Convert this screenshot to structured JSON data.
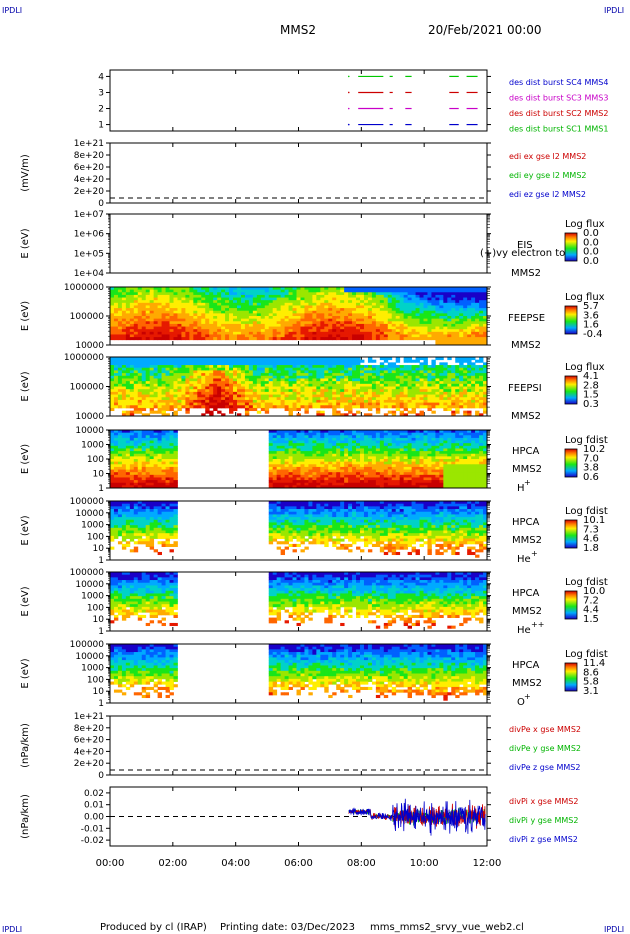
{
  "header": {
    "corner_tl": "IPDLI",
    "corner_tr": "IPDLI",
    "corner_bl": "IPDLI",
    "corner_br": "IPDLI",
    "spacecraft": "MMS2",
    "date": "20/Feb/2021 00:00"
  },
  "footer": {
    "produced_by": "Produced by cl (IRAP)",
    "printing_date": "Printing date: 03/Dec/2023",
    "filename": "mms_mms2_srvy_vue_web2.cl"
  },
  "chart_data": {
    "type": "heatmap",
    "x_ticks": [
      "00:00",
      "02:00",
      "04:00",
      "06:00",
      "08:00",
      "10:00",
      "12:00"
    ],
    "xlim": [
      "00:00",
      "12:00"
    ],
    "panels": [
      {
        "id": "burst",
        "type": "line",
        "y_ticks": [
          "1",
          "2",
          "3",
          "4"
        ],
        "ylim": [
          0.6,
          4.4
        ],
        "series": [
          {
            "name": "des dist burst SC1 MMS1",
            "color": "#00c800",
            "y": 4
          },
          {
            "name": "des dist burst SC2 MMS2",
            "color": "#cc0000",
            "y": 3
          },
          {
            "name": "des dist burst SC3 MMS3",
            "color": "#c800c8",
            "y": 2
          },
          {
            "name": "des dist burst SC4 MMS4",
            "color": "#0000cc",
            "y": 1
          }
        ],
        "legend_colors": [
          "#0000cc",
          "#c800c8",
          "#cc0000",
          "#00b400"
        ]
      },
      {
        "id": "edi",
        "type": "line",
        "ylabel": "(mV/m)",
        "y_ticks": [
          "1e+21",
          "8e+20",
          "6e+20",
          "4e+20",
          "2e+20",
          "0"
        ],
        "series": [
          {
            "name": "edi ex gse l2 MMS2",
            "color": "#cc0000"
          },
          {
            "name": "edi ey gse l2 MMS2",
            "color": "#00b400"
          },
          {
            "name": "edi ez gse l2 MMS2",
            "color": "#0000cc"
          }
        ]
      },
      {
        "id": "eis",
        "type": "heatmap",
        "ylabel": "E (eV)",
        "y_ticks": [
          "1e+07",
          "1e+06",
          "1e+05",
          "1e+04"
        ],
        "label1": "EIS",
        "label2": "MMS2",
        "overlay": "(+)vy electron to",
        "cb_title": "Log flux",
        "cb_ticks": [
          "0.0",
          "0.0",
          "0.0",
          "0.0"
        ]
      },
      {
        "id": "feepse",
        "type": "heatmap",
        "ylabel": "E (eV)",
        "y_ticks": [
          "1000000",
          "100000",
          "10000"
        ],
        "label1": "FEEPSE",
        "label2": "MMS2",
        "cb_title": "Log flux",
        "cb_ticks": [
          "5.7",
          "3.6",
          "1.6",
          "-0.4"
        ]
      },
      {
        "id": "feepsi",
        "type": "heatmap",
        "ylabel": "E (eV)",
        "y_ticks": [
          "1000000",
          "100000",
          "10000"
        ],
        "label1": "FEEPSI",
        "label2": "MMS2",
        "cb_title": "Log flux",
        "cb_ticks": [
          "4.1",
          "2.8",
          "1.5",
          "0.3"
        ]
      },
      {
        "id": "hpca_h",
        "type": "heatmap",
        "ylabel": "E (eV)",
        "y_ticks": [
          "10000",
          "1000",
          "100",
          "10",
          "1"
        ],
        "label1": "HPCA",
        "label2": "MMS2",
        "species": "H",
        "species_sup": "+",
        "cb_title": "Log fdist",
        "cb_ticks": [
          "10.2",
          "7.0",
          "3.8",
          "0.6"
        ]
      },
      {
        "id": "hpca_he",
        "type": "heatmap",
        "ylabel": "E (eV)",
        "y_ticks": [
          "100000",
          "10000",
          "1000",
          "100",
          "10",
          "1"
        ],
        "label1": "HPCA",
        "label2": "MMS2",
        "species": "He",
        "species_sup": "+",
        "cb_title": "Log fdist",
        "cb_ticks": [
          "10.1",
          "7.3",
          "4.6",
          "1.8"
        ]
      },
      {
        "id": "hpca_hepp",
        "type": "heatmap",
        "ylabel": "E (eV)",
        "y_ticks": [
          "100000",
          "10000",
          "1000",
          "100",
          "10",
          "1"
        ],
        "label1": "HPCA",
        "label2": "MMS2",
        "species": "He",
        "species_sup": "++",
        "cb_title": "Log fdist",
        "cb_ticks": [
          "10.0",
          "7.2",
          "4.4",
          "1.5"
        ]
      },
      {
        "id": "hpca_o",
        "type": "heatmap",
        "ylabel": "E (eV)",
        "y_ticks": [
          "100000",
          "10000",
          "1000",
          "100",
          "10",
          "1"
        ],
        "label1": "HPCA",
        "label2": "MMS2",
        "species": "O",
        "species_sup": "+",
        "cb_title": "Log fdist",
        "cb_ticks": [
          "11.4",
          "8.6",
          "5.8",
          "3.1"
        ]
      },
      {
        "id": "divpe",
        "type": "line",
        "ylabel": "(nPa/km)",
        "y_ticks": [
          "1e+21",
          "8e+20",
          "6e+20",
          "4e+20",
          "2e+20",
          "0"
        ],
        "series": [
          {
            "name": "divPe x gse MMS2",
            "color": "#cc0000"
          },
          {
            "name": "divPe y gse MMS2",
            "color": "#00b400"
          },
          {
            "name": "divPe z gse MMS2",
            "color": "#0000cc"
          }
        ]
      },
      {
        "id": "divpi",
        "type": "line",
        "ylabel": "(nPa/km)",
        "y_ticks": [
          "0.02",
          "0.01",
          "0.00",
          "-0.01",
          "-0.02"
        ],
        "ylim": [
          -0.025,
          0.025
        ],
        "series": [
          {
            "name": "divPi x gse MMS2",
            "color": "#cc0000"
          },
          {
            "name": "divPi y gse MMS2",
            "color": "#00b400"
          },
          {
            "name": "divPi z gse MMS2",
            "color": "#0000cc"
          }
        ]
      }
    ]
  }
}
